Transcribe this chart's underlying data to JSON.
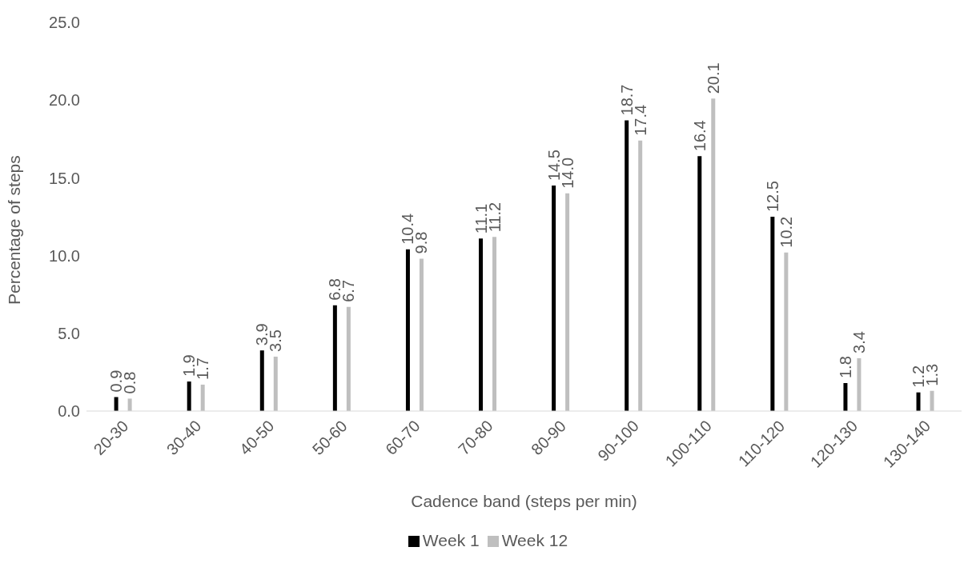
{
  "chart_data": {
    "type": "bar",
    "xlabel": "Cadence band (steps per min)",
    "ylabel": "Percentage of steps",
    "categories": [
      "20-30",
      "30-40",
      "40-50",
      "50-60",
      "60-70",
      "70-80",
      "80-90",
      "90-100",
      "100-110",
      "110-120",
      "120-130",
      "130-140"
    ],
    "series": [
      {
        "name": "Week 1",
        "color": "#000000",
        "values": [
          0.9,
          1.9,
          3.9,
          6.8,
          10.4,
          11.1,
          14.5,
          18.7,
          16.4,
          12.5,
          1.8,
          1.2
        ],
        "value_labels": [
          "0.9",
          "1.9",
          "3.9",
          "6.8",
          "10.4",
          "11.1",
          "14.5",
          "18.7",
          "16.4",
          "12.5",
          "1.8",
          "1.2"
        ]
      },
      {
        "name": "Week 12",
        "color": "#bfbfbf",
        "values": [
          0.8,
          1.7,
          3.5,
          6.7,
          9.8,
          11.2,
          14.0,
          17.4,
          20.1,
          10.2,
          3.4,
          1.3
        ],
        "value_labels": [
          "0.8",
          "1.7",
          "3.5",
          "6.7",
          "9.8",
          "11.2",
          "14.0",
          "17.4",
          "20.1",
          "10.2",
          "3.4",
          "1.3"
        ]
      }
    ],
    "ylim": [
      0,
      25
    ],
    "yticks": [
      {
        "value": 0,
        "label": "0.0"
      },
      {
        "value": 5,
        "label": "5.0"
      },
      {
        "value": 10,
        "label": "10.0"
      },
      {
        "value": 15,
        "label": "15.0"
      },
      {
        "value": 20,
        "label": "20.0"
      },
      {
        "value": 25,
        "label": "25.0"
      }
    ],
    "grid": false,
    "legend": "bottom"
  }
}
